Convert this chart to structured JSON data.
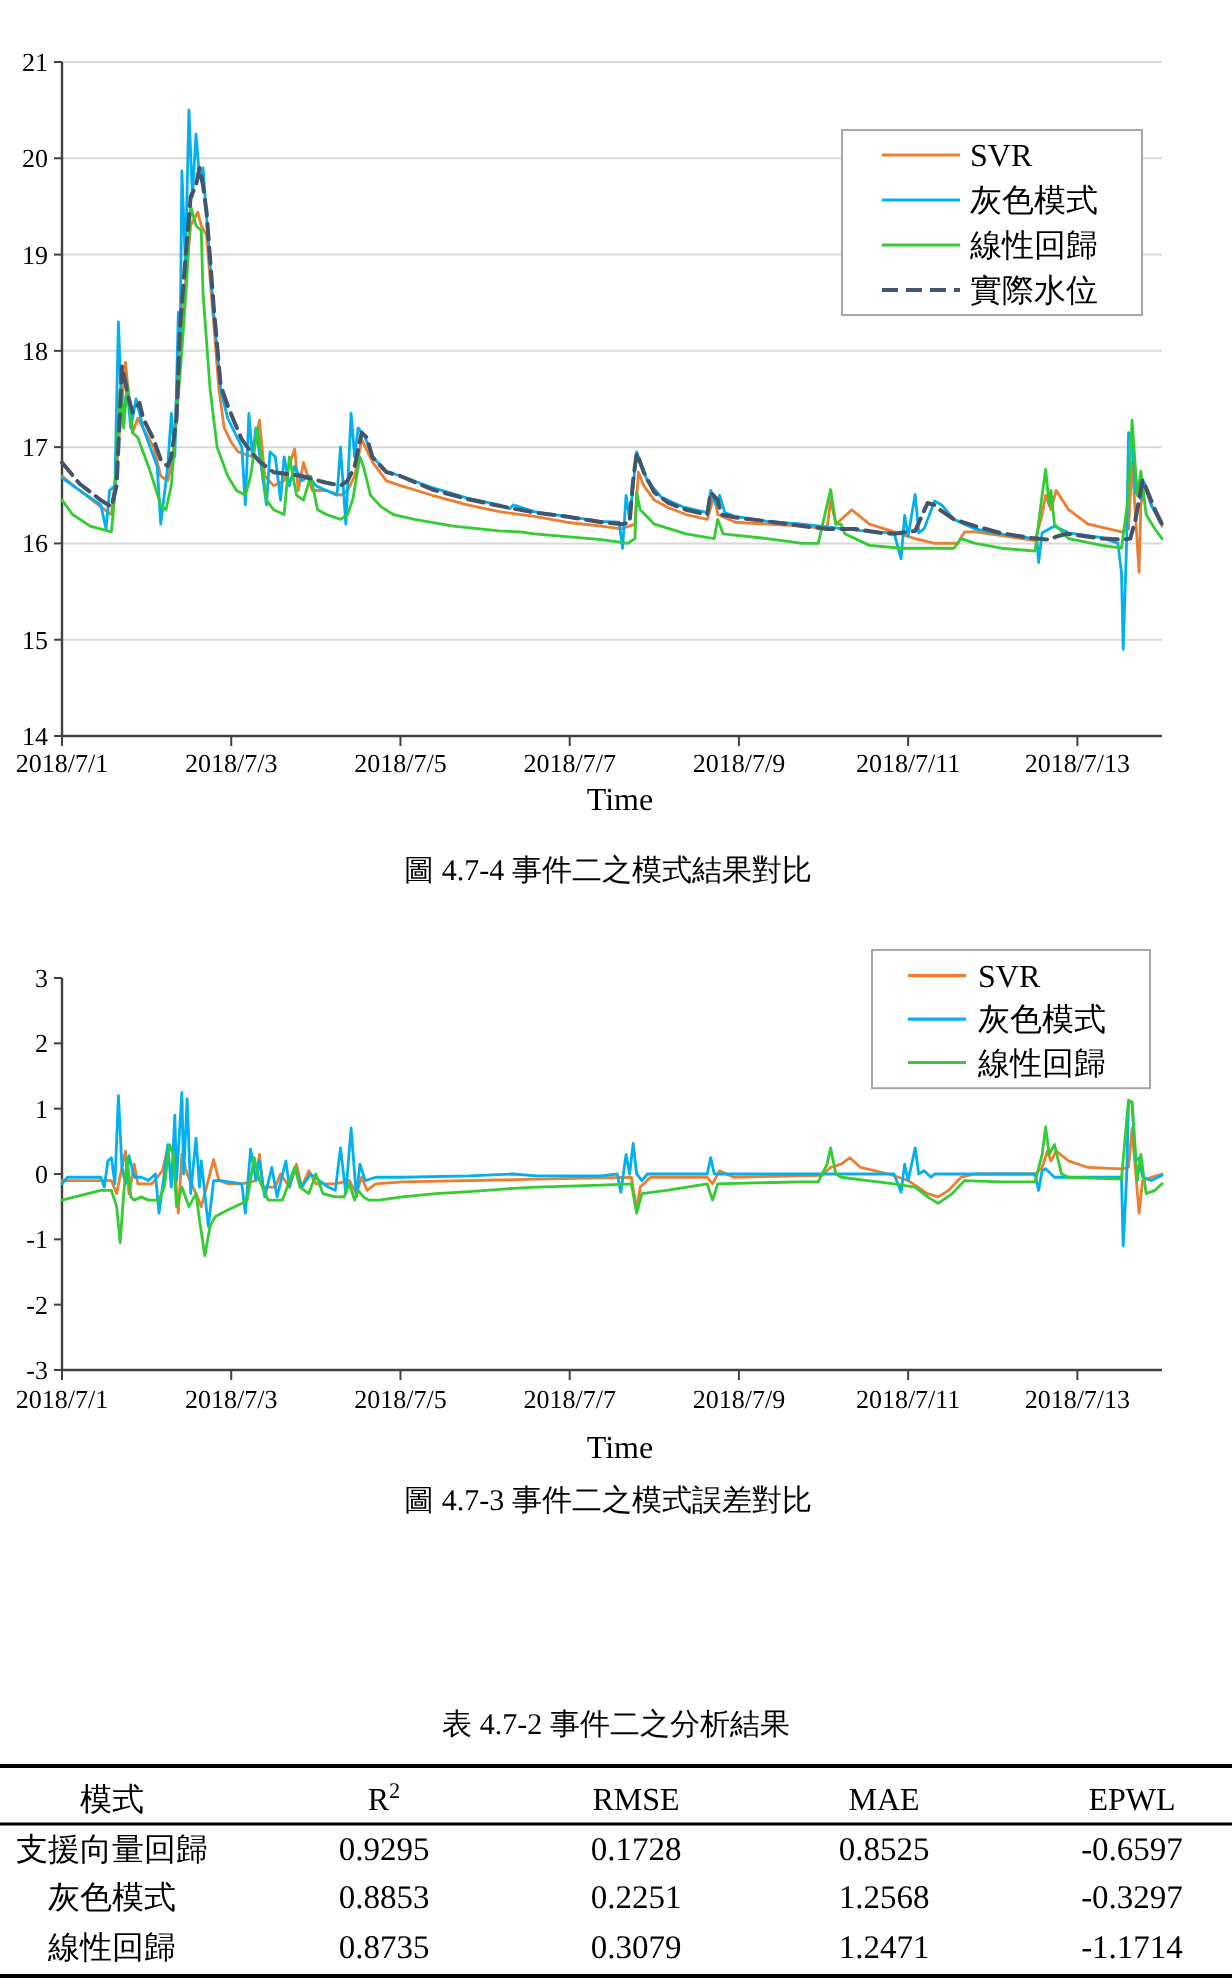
{
  "chart_data": [
    {
      "type": "line",
      "title": "圖 4.7-4 事件二之模式結果對比",
      "xlabel": "Time",
      "xlim": [
        "2018-07-01",
        "2018-07-14"
      ],
      "xticks": [
        {
          "value": "2018-07-01",
          "label": "2018/7/1"
        },
        {
          "value": "2018-07-03",
          "label": "2018/7/3"
        },
        {
          "value": "2018-07-05",
          "label": "2018/7/5"
        },
        {
          "value": "2018-07-07",
          "label": "2018/7/7"
        },
        {
          "value": "2018-07-09",
          "label": "2018/7/9"
        },
        {
          "value": "2018-07-11",
          "label": "2018/7/11"
        },
        {
          "value": "2018-07-13",
          "label": "2018/7/13"
        }
      ],
      "ylim": [
        14,
        21
      ],
      "yticks": [
        14,
        15,
        16,
        17,
        18,
        19,
        20,
        21
      ],
      "grid": "y",
      "legend": "top right",
      "series": [
        {
          "name": "SVR",
          "color": "#ed7d31",
          "x": [
            "2018-07-01T00:00",
            "2018-07-01T05:00",
            "2018-07-01T11:00",
            "2018-07-01T14:00",
            "2018-07-01T15:30",
            "2018-07-01T18:00",
            "2018-07-01T19:00",
            "2018-07-01T20:00",
            "2018-07-01T21:30",
            "2018-07-01T23:00",
            "2018-07-02T02:00",
            "2018-07-02T04:00",
            "2018-07-02T06:00",
            "2018-07-02T07:30",
            "2018-07-02T09:00",
            "2018-07-02T11:00",
            "2018-07-02T12:30",
            "2018-07-02T14:30",
            "2018-07-02T15:30",
            "2018-07-02T17:00",
            "2018-07-02T19:00",
            "2018-07-02T20:30",
            "2018-07-02T22:00",
            "2018-07-03T00:00",
            "2018-07-03T02:00",
            "2018-07-03T06:00",
            "2018-07-03T08:00",
            "2018-07-03T09:30",
            "2018-07-03T12:00",
            "2018-07-03T15:00",
            "2018-07-03T18:00",
            "2018-07-03T19:00",
            "2018-07-03T20:30",
            "2018-07-03T23:00",
            "2018-07-04T03:00",
            "2018-07-04T07:00",
            "2018-07-04T09:00",
            "2018-07-04T11:00",
            "2018-07-04T13:00",
            "2018-07-04T16:00",
            "2018-07-04T20:00",
            "2018-07-05T00:00",
            "2018-07-05T09:00",
            "2018-07-05T19:00",
            "2018-07-06T04:00",
            "2018-07-06T14:00",
            "2018-07-06T23:00",
            "2018-07-07T09:00",
            "2018-07-07T14:30",
            "2018-07-07T18:30",
            "2018-07-07T19:30",
            "2018-07-07T21:00",
            "2018-07-08T00:00",
            "2018-07-08T04:00",
            "2018-07-08T09:00",
            "2018-07-08T15:00",
            "2018-07-08T17:00",
            "2018-07-08T18:00",
            "2018-07-08T23:00",
            "2018-07-09T08:00",
            "2018-07-09T18:00",
            "2018-07-10T01:00",
            "2018-07-10T02:00",
            "2018-07-10T03:30",
            "2018-07-10T08:00",
            "2018-07-10T13:00",
            "2018-07-10T20:00",
            "2018-07-11T02:00",
            "2018-07-11T07:30",
            "2018-07-11T14:00",
            "2018-07-11T16:00",
            "2018-07-11T19:00",
            "2018-07-12T02:30",
            "2018-07-12T12:00",
            "2018-07-12T14:00",
            "2018-07-12T15:00",
            "2018-07-12T16:30",
            "2018-07-12T18:00",
            "2018-07-12T21:30",
            "2018-07-13T03:00",
            "2018-07-13T12:30",
            "2018-07-13T14:30",
            "2018-07-13T15:30",
            "2018-07-13T17:30",
            "2018-07-13T18:00",
            "2018-07-13T19:00",
            "2018-07-13T21:00",
            "2018-07-14T00:00"
          ],
          "values": [
            16.7,
            16.55,
            16.38,
            16.3,
            16.8,
            17.88,
            17.5,
            17.15,
            17.3,
            17.2,
            17,
            16.7,
            16.65,
            16.9,
            17.8,
            18.7,
            19.3,
            19.44,
            19.3,
            19.2,
            18.3,
            17.6,
            17.2,
            17.05,
            16.95,
            16.9,
            17.28,
            16.7,
            16.6,
            16.65,
            16.98,
            16.55,
            16.84,
            16.55,
            16.55,
            16.5,
            16.55,
            16.7,
            17.08,
            16.85,
            16.65,
            16.6,
            16.5,
            16.4,
            16.33,
            16.28,
            16.22,
            16.18,
            16.15,
            16.2,
            16.74,
            16.6,
            16.45,
            16.37,
            16.3,
            16.25,
            16.5,
            16.3,
            16.22,
            16.2,
            16.18,
            16.15,
            16.45,
            16.2,
            16.35,
            16.2,
            16.12,
            16.05,
            16,
            16,
            16.12,
            16.12,
            16.08,
            16.03,
            16.3,
            16.5,
            16.35,
            16.55,
            16.35,
            16.2,
            16.12,
            16.15,
            16.85,
            15.7,
            16.4,
            16.6,
            16.4,
            16.18
          ]
        },
        {
          "name": "灰色模式",
          "color": "#00b0f0",
          "x": [
            "2018-07-01T00:00",
            "2018-07-01T05:00",
            "2018-07-01T11:00",
            "2018-07-01T12:30",
            "2018-07-01T13:30",
            "2018-07-01T15:00",
            "2018-07-01T16:00",
            "2018-07-01T17:00",
            "2018-07-01T18:30",
            "2018-07-01T19:30",
            "2018-07-01T21:00",
            "2018-07-01T23:00",
            "2018-07-02T01:00",
            "2018-07-02T03:00",
            "2018-07-02T04:00",
            "2018-07-02T06:00",
            "2018-07-02T07:00",
            "2018-07-02T08:00",
            "2018-07-02T09:00",
            "2018-07-02T09:30",
            "2018-07-02T10:00",
            "2018-07-02T11:00",
            "2018-07-02T12:00",
            "2018-07-02T13:00",
            "2018-07-02T14:00",
            "2018-07-02T15:00",
            "2018-07-02T16:00",
            "2018-07-02T17:00",
            "2018-07-02T19:00",
            "2018-07-02T21:00",
            "2018-07-02T23:00",
            "2018-07-03T01:00",
            "2018-07-03T03:00",
            "2018-07-03T04:00",
            "2018-07-03T05:00",
            "2018-07-03T06:00",
            "2018-07-03T07:00",
            "2018-07-03T08:30",
            "2018-07-03T10:00",
            "2018-07-03T11:00",
            "2018-07-03T12:30",
            "2018-07-03T14:00",
            "2018-07-03T15:00",
            "2018-07-03T16:30",
            "2018-07-03T18:00",
            "2018-07-03T20:00",
            "2018-07-03T22:00",
            "2018-07-04T00:00",
            "2018-07-04T03:00",
            "2018-07-04T06:00",
            "2018-07-04T07:00",
            "2018-07-04T08:30",
            "2018-07-04T10:00",
            "2018-07-04T11:00",
            "2018-07-04T12:00",
            "2018-07-04T14:00",
            "2018-07-04T16:00",
            "2018-07-04T20:00",
            "2018-07-05T00:00",
            "2018-07-05T09:00",
            "2018-07-05T19:00",
            "2018-07-06T04:00",
            "2018-07-06T07:00",
            "2018-07-06T08:00",
            "2018-07-06T14:00",
            "2018-07-06T23:00",
            "2018-07-07T09:00",
            "2018-07-07T14:00",
            "2018-07-07T15:00",
            "2018-07-07T16:00",
            "2018-07-07T17:00",
            "2018-07-07T19:00",
            "2018-07-07T20:00",
            "2018-07-07T22:00",
            "2018-07-08T02:00",
            "2018-07-08T08:00",
            "2018-07-08T15:00",
            "2018-07-08T16:00",
            "2018-07-08T17:30",
            "2018-07-08T18:30",
            "2018-07-08T20:00",
            "2018-07-08T23:00",
            "2018-07-09T08:00",
            "2018-07-09T18:00",
            "2018-07-10T04:00",
            "2018-07-10T14:00",
            "2018-07-10T20:00",
            "2018-07-10T22:00",
            "2018-07-10T23:00",
            "2018-07-11T00:00",
            "2018-07-11T02:00",
            "2018-07-11T03:00",
            "2018-07-11T04:30",
            "2018-07-11T07:30",
            "2018-07-11T09:30",
            "2018-07-11T13:00",
            "2018-07-11T19:00",
            "2018-07-12T02:00",
            "2018-07-12T10:00",
            "2018-07-12T12:30",
            "2018-07-12T13:00",
            "2018-07-12T14:00",
            "2018-07-12T16:00",
            "2018-07-12T17:30",
            "2018-07-12T21:30",
            "2018-07-13T07:00",
            "2018-07-13T11:30",
            "2018-07-13T12:30",
            "2018-07-13T13:00",
            "2018-07-13T14:00",
            "2018-07-13T14:30",
            "2018-07-13T15:30",
            "2018-07-13T16:30",
            "2018-07-13T18:00",
            "2018-07-13T19:00",
            "2018-07-13T21:00",
            "2018-07-14T00:00"
          ],
          "values": [
            16.68,
            16.55,
            16.4,
            16.15,
            16.55,
            16.6,
            18.3,
            17.3,
            17.6,
            17.2,
            17.5,
            17.2,
            17,
            16.8,
            16.2,
            16.8,
            17.35,
            16.9,
            18.4,
            18,
            19.87,
            18.9,
            20.5,
            19.6,
            20.25,
            19.8,
            19.9,
            19.4,
            18.4,
            17.6,
            17.3,
            17.15,
            17,
            16.4,
            17.35,
            16.9,
            17.2,
            16.8,
            16.4,
            16.95,
            16.9,
            16.45,
            16.9,
            16.6,
            16.8,
            16.65,
            16.7,
            16.6,
            16.55,
            16.5,
            17,
            16.2,
            17.35,
            16.9,
            17.2,
            17.1,
            16.9,
            16.75,
            16.7,
            16.58,
            16.47,
            16.4,
            16.36,
            16.4,
            16.33,
            16.28,
            16.23,
            16.22,
            15.95,
            16.5,
            16.25,
            16.95,
            16.85,
            16.65,
            16.48,
            16.38,
            16.32,
            16.55,
            16.4,
            16.5,
            16.32,
            16.28,
            16.23,
            16.2,
            16.16,
            16.12,
            16.11,
            15.84,
            16.29,
            16.08,
            16.51,
            16.11,
            16.15,
            16.44,
            16.4,
            16.25,
            16.15,
            16.1,
            16.06,
            16.05,
            15.8,
            16.11,
            16.15,
            16.18,
            16.11,
            16.06,
            16,
            15.7,
            14.9,
            16.04,
            17.15,
            17.08,
            16.53,
            16.46,
            16.63,
            16.39,
            16.2
          ]
        },
        {
          "name": "線性回歸",
          "color": "#33cc33",
          "x": [
            "2018-07-01T00:00",
            "2018-07-01T03:00",
            "2018-07-01T08:00",
            "2018-07-01T14:00",
            "2018-07-01T15:00",
            "2018-07-01T16:30",
            "2018-07-01T17:30",
            "2018-07-01T18:30",
            "2018-07-01T20:00",
            "2018-07-01T21:30",
            "2018-07-01T23:00",
            "2018-07-02T01:00",
            "2018-07-02T04:00",
            "2018-07-02T05:30",
            "2018-07-02T07:00",
            "2018-07-02T08:30",
            "2018-07-02T10:00",
            "2018-07-02T11:30",
            "2018-07-02T12:30",
            "2018-07-02T14:00",
            "2018-07-02T15:30",
            "2018-07-02T16:00",
            "2018-07-02T18:00",
            "2018-07-02T20:00",
            "2018-07-02T23:00",
            "2018-07-03T01:30",
            "2018-07-03T04:00",
            "2018-07-03T05:30",
            "2018-07-03T07:30",
            "2018-07-03T10:00",
            "2018-07-03T12:00",
            "2018-07-03T15:00",
            "2018-07-03T16:30",
            "2018-07-03T18:30",
            "2018-07-03T20:30",
            "2018-07-03T22:30",
            "2018-07-04T00:30",
            "2018-07-04T03:00",
            "2018-07-04T07:00",
            "2018-07-04T09:00",
            "2018-07-04T10:30",
            "2018-07-04T12:30",
            "2018-07-04T13:30",
            "2018-07-04T15:30",
            "2018-07-04T18:30",
            "2018-07-04T22:00",
            "2018-07-05T04:00",
            "2018-07-05T15:00",
            "2018-07-06T04:00",
            "2018-07-06T10:00",
            "2018-07-06T14:00",
            "2018-07-06T23:00",
            "2018-07-07T09:00",
            "2018-07-07T16:30",
            "2018-07-07T18:30",
            "2018-07-07T19:00",
            "2018-07-07T20:00",
            "2018-07-08T00:00",
            "2018-07-08T09:00",
            "2018-07-08T17:00",
            "2018-07-08T18:00",
            "2018-07-08T19:30",
            "2018-07-09T08:00",
            "2018-07-09T18:00",
            "2018-07-09T22:30",
            "2018-07-10T01:00",
            "2018-07-10T02:00",
            "2018-07-10T03:30",
            "2018-07-10T05:00",
            "2018-07-10T06:00",
            "2018-07-10T13:00",
            "2018-07-10T22:00",
            "2018-07-11T13:00",
            "2018-07-11T15:00",
            "2018-07-11T19:00",
            "2018-07-12T02:30",
            "2018-07-12T12:00",
            "2018-07-12T14:00",
            "2018-07-12T15:00",
            "2018-07-12T16:00",
            "2018-07-12T16:30",
            "2018-07-12T17:30",
            "2018-07-12T21:30",
            "2018-07-13T07:00",
            "2018-07-13T12:30",
            "2018-07-13T14:30",
            "2018-07-13T15:30",
            "2018-07-13T17:00",
            "2018-07-13T18:00",
            "2018-07-13T19:30",
            "2018-07-13T22:00",
            "2018-07-14T00:00"
          ],
          "values": [
            16.45,
            16.3,
            16.18,
            16.12,
            16.5,
            17.6,
            17.2,
            17.65,
            17.15,
            17.1,
            16.95,
            16.75,
            16.4,
            16.35,
            16.6,
            17.3,
            18,
            18.8,
            19.5,
            19.3,
            19.25,
            18.6,
            17.6,
            17,
            16.7,
            16.55,
            16.5,
            16.7,
            17.2,
            16.45,
            16.35,
            16.3,
            16.9,
            16.5,
            16.45,
            16.7,
            16.35,
            16.3,
            16.25,
            16.3,
            16.46,
            16.9,
            16.8,
            16.5,
            16.38,
            16.3,
            16.25,
            16.18,
            16.13,
            16.12,
            16.1,
            16.07,
            16.04,
            16,
            16.05,
            16.53,
            16.35,
            16.2,
            16.1,
            16.05,
            16.25,
            16.1,
            16.05,
            16,
            16,
            16.4,
            16.56,
            16.2,
            16.2,
            16.1,
            15.98,
            15.95,
            15.95,
            16.05,
            16,
            15.95,
            15.92,
            16.5,
            16.77,
            16.4,
            16.55,
            16.2,
            16.05,
            15.98,
            15.95,
            16.5,
            17.28,
            16.5,
            16.75,
            16.3,
            16.15,
            16.05
          ]
        },
        {
          "name": "實際水位",
          "color": "#44546a",
          "line_style": "dashed",
          "x": [
            "2018-07-01T00:00",
            "2018-07-01T05:00",
            "2018-07-01T11:00",
            "2018-07-01T14:00",
            "2018-07-01T15:30",
            "2018-07-01T17:00",
            "2018-07-01T19:00",
            "2018-07-01T20:00",
            "2018-07-01T22:00",
            "2018-07-01T23:00",
            "2018-07-02T02:00",
            "2018-07-02T04:00",
            "2018-07-02T06:00",
            "2018-07-02T07:00",
            "2018-07-02T08:30",
            "2018-07-02T09:30",
            "2018-07-02T11:00",
            "2018-07-02T12:30",
            "2018-07-02T14:00",
            "2018-07-02T15:00",
            "2018-07-02T16:00",
            "2018-07-02T17:00",
            "2018-07-02T19:00",
            "2018-07-02T21:00",
            "2018-07-02T23:00",
            "2018-07-03T01:00",
            "2018-07-03T03:00",
            "2018-07-03T05:00",
            "2018-07-03T08:00",
            "2018-07-03T12:00",
            "2018-07-03T16:00",
            "2018-07-03T20:00",
            "2018-07-03T23:00",
            "2018-07-04T03:00",
            "2018-07-04T07:00",
            "2018-07-04T09:00",
            "2018-07-04T11:00",
            "2018-07-04T13:00",
            "2018-07-04T14:30",
            "2018-07-04T16:00",
            "2018-07-04T20:00",
            "2018-07-05T00:00",
            "2018-07-05T09:00",
            "2018-07-05T19:00",
            "2018-07-06T04:00",
            "2018-07-06T14:00",
            "2018-07-06T23:00",
            "2018-07-07T09:00",
            "2018-07-07T15:00",
            "2018-07-07T17:00",
            "2018-07-07T18:00",
            "2018-07-07T19:00",
            "2018-07-07T21:00",
            "2018-07-08T00:00",
            "2018-07-08T04:00",
            "2018-07-08T09:00",
            "2018-07-08T15:00",
            "2018-07-08T16:00",
            "2018-07-08T18:00",
            "2018-07-08T19:00",
            "2018-07-08T23:00",
            "2018-07-09T08:00",
            "2018-07-09T18:00",
            "2018-07-10T01:00",
            "2018-07-10T09:00",
            "2018-07-10T16:00",
            "2018-07-10T20:00",
            "2018-07-11T02:00",
            "2018-07-11T05:30",
            "2018-07-11T07:30",
            "2018-07-11T09:00",
            "2018-07-11T13:00",
            "2018-07-11T19:00",
            "2018-07-12T02:00",
            "2018-07-12T10:00",
            "2018-07-12T16:00",
            "2018-07-12T18:00",
            "2018-07-12T21:00",
            "2018-07-13T07:00",
            "2018-07-13T13:00",
            "2018-07-13T15:00",
            "2018-07-13T16:30",
            "2018-07-13T18:30",
            "2018-07-13T20:00",
            "2018-07-13T22:00",
            "2018-07-14T00:00"
          ],
          "values": [
            16.84,
            16.62,
            16.45,
            16.38,
            16.6,
            17.84,
            17.5,
            17.36,
            17.46,
            17.3,
            17.08,
            16.87,
            16.8,
            16.9,
            17.3,
            18.26,
            18.95,
            19.6,
            19.72,
            19.9,
            19.72,
            19.44,
            18.47,
            17.64,
            17.43,
            17.25,
            17.08,
            16.98,
            16.85,
            16.74,
            16.72,
            16.7,
            16.67,
            16.63,
            16.6,
            16.65,
            16.8,
            17.15,
            17.1,
            16.9,
            16.74,
            16.7,
            16.56,
            16.46,
            16.39,
            16.32,
            16.28,
            16.22,
            16.2,
            16.22,
            16.66,
            16.94,
            16.74,
            16.53,
            16.42,
            16.35,
            16.3,
            16.53,
            16.45,
            16.3,
            16.27,
            16.23,
            16.18,
            16.15,
            16.15,
            16.11,
            16.1,
            16.13,
            16.42,
            16.4,
            16.35,
            16.25,
            16.18,
            16.11,
            16.06,
            16.04,
            16.07,
            16.1,
            16.05,
            16.04,
            16.05,
            16.25,
            16.66,
            16.53,
            16.35,
            16.2
          ]
        }
      ]
    },
    {
      "type": "line",
      "title": "圖 4.7-3 事件二之模式誤差對比",
      "xlabel": "Time",
      "xlim": [
        "2018-07-01",
        "2018-07-14"
      ],
      "xticks": [
        {
          "value": "2018-07-01",
          "label": "2018/7/1"
        },
        {
          "value": "2018-07-03",
          "label": "2018/7/3"
        },
        {
          "value": "2018-07-05",
          "label": "2018/7/5"
        },
        {
          "value": "2018-07-07",
          "label": "2018/7/7"
        },
        {
          "value": "2018-07-09",
          "label": "2018/7/9"
        },
        {
          "value": "2018-07-11",
          "label": "2018/7/11"
        },
        {
          "value": "2018-07-13",
          "label": "2018/7/13"
        }
      ],
      "ylim": [
        -3,
        3
      ],
      "yticks": [
        -3,
        -2,
        -1,
        0,
        1,
        2,
        3
      ],
      "legend": "top right",
      "series": [
        {
          "name": "SVR",
          "color": "#ed7d31",
          "x": [
            "2018-07-01T00:00",
            "2018-07-01T11:00",
            "2018-07-01T14:00",
            "2018-07-01T15:30",
            "2018-07-01T17:00",
            "2018-07-01T18:00",
            "2018-07-01T19:00",
            "2018-07-01T20:30",
            "2018-07-01T21:30",
            "2018-07-02T01:30",
            "2018-07-02T04:30",
            "2018-07-02T06:00",
            "2018-07-02T07:30",
            "2018-07-02T09:00",
            "2018-07-02T10:00",
            "2018-07-02T11:30",
            "2018-07-02T14:00",
            "2018-07-02T15:30",
            "2018-07-02T16:30",
            "2018-07-02T19:00",
            "2018-07-02T20:30",
            "2018-07-02T23:00",
            "2018-07-03T03:00",
            "2018-07-03T07:00",
            "2018-07-03T08:00",
            "2018-07-03T09:00",
            "2018-07-03T12:30",
            "2018-07-03T14:00",
            "2018-07-03T16:30",
            "2018-07-03T18:30",
            "2018-07-03T20:00",
            "2018-07-03T22:00",
            "2018-07-04T00:00",
            "2018-07-04T05:30",
            "2018-07-04T09:30",
            "2018-07-04T11:30",
            "2018-07-04T13:00",
            "2018-07-04T14:30",
            "2018-07-04T17:00",
            "2018-07-05T00:30",
            "2018-07-05T19:30",
            "2018-07-06T14:30",
            "2018-07-07T09:00",
            "2018-07-07T17:30",
            "2018-07-07T19:00",
            "2018-07-07T20:00",
            "2018-07-07T23:00",
            "2018-07-08T15:00",
            "2018-07-08T16:30",
            "2018-07-08T18:30",
            "2018-07-08T22:30",
            "2018-07-09T23:30",
            "2018-07-10T02:00",
            "2018-07-10T05:00",
            "2018-07-10T07:30",
            "2018-07-10T10:30",
            "2018-07-10T18:30",
            "2018-07-11T00:00",
            "2018-07-11T05:30",
            "2018-07-11T08:30",
            "2018-07-11T11:30",
            "2018-07-11T15:00",
            "2018-07-11T19:00",
            "2018-07-12T12:00",
            "2018-07-12T14:00",
            "2018-07-12T15:30",
            "2018-07-12T16:30",
            "2018-07-12T18:00",
            "2018-07-12T21:30",
            "2018-07-13T03:00",
            "2018-07-13T12:30",
            "2018-07-13T14:30",
            "2018-07-13T15:30",
            "2018-07-13T17:30",
            "2018-07-13T18:30",
            "2018-07-13T21:00",
            "2018-07-14T00:00"
          ],
          "values": [
            -0.1,
            -0.1,
            -0.1,
            -0.3,
            0.1,
            0.35,
            -0.3,
            0.15,
            -0.15,
            -0.15,
            0.05,
            0.4,
            0.4,
            -0.6,
            0.3,
            0,
            -0.3,
            -0.5,
            -0.3,
            0.22,
            -0.1,
            -0.15,
            -0.15,
            -0.1,
            0.3,
            -0.2,
            -0.2,
            0,
            -0.2,
            0.15,
            -0.2,
            0.05,
            -0.15,
            -0.15,
            -0.1,
            -0.3,
            -0.05,
            -0.25,
            -0.15,
            -0.12,
            -0.1,
            -0.08,
            -0.06,
            -0.05,
            -0.55,
            -0.2,
            -0.05,
            -0.05,
            -0.15,
            0.05,
            -0.05,
            -0.02,
            0.1,
            0.15,
            0.25,
            0.1,
            0,
            -0.1,
            -0.3,
            -0.35,
            -0.25,
            -0.05,
            0,
            0,
            0.1,
            0.35,
            0.2,
            0.35,
            0.2,
            0.1,
            0.08,
            0.1,
            0.7,
            -0.6,
            -0.1,
            -0.05,
            0
          ]
        },
        {
          "name": "灰色模式",
          "color": "#00b0f0",
          "x": [
            "2018-07-01T00:00",
            "2018-07-01T01:30",
            "2018-07-01T11:00",
            "2018-07-01T12:00",
            "2018-07-01T13:00",
            "2018-07-01T14:00",
            "2018-07-01T15:00",
            "2018-07-01T16:00",
            "2018-07-01T17:00",
            "2018-07-01T18:00",
            "2018-07-01T19:00",
            "2018-07-01T20:30",
            "2018-07-01T22:30",
            "2018-07-02T00:30",
            "2018-07-02T02:30",
            "2018-07-02T03:30",
            "2018-07-02T05:00",
            "2018-07-02T06:00",
            "2018-07-02T07:00",
            "2018-07-02T08:00",
            "2018-07-02T08:30",
            "2018-07-02T10:00",
            "2018-07-02T10:30",
            "2018-07-02T11:30",
            "2018-07-02T12:30",
            "2018-07-02T14:00",
            "2018-07-02T15:00",
            "2018-07-02T15:30",
            "2018-07-02T16:30",
            "2018-07-02T17:30",
            "2018-07-02T19:00",
            "2018-07-02T21:00",
            "2018-07-03T03:00",
            "2018-07-03T04:00",
            "2018-07-03T05:30",
            "2018-07-03T07:00",
            "2018-07-03T08:00",
            "2018-07-03T09:30",
            "2018-07-03T11:30",
            "2018-07-03T13:00",
            "2018-07-03T15:30",
            "2018-07-03T16:30",
            "2018-07-03T18:00",
            "2018-07-03T20:00",
            "2018-07-03T22:30",
            "2018-07-04T01:00",
            "2018-07-04T03:30",
            "2018-07-04T05:30",
            "2018-07-04T07:00",
            "2018-07-04T08:30",
            "2018-07-04T10:00",
            "2018-07-04T11:30",
            "2018-07-04T12:30",
            "2018-07-04T14:00",
            "2018-07-04T17:00",
            "2018-07-05T00:30",
            "2018-07-05T19:30",
            "2018-07-06T08:00",
            "2018-07-06T14:30",
            "2018-07-07T09:00",
            "2018-07-07T13:30",
            "2018-07-07T14:30",
            "2018-07-07T16:00",
            "2018-07-07T17:00",
            "2018-07-07T18:00",
            "2018-07-07T19:00",
            "2018-07-07T20:30",
            "2018-07-07T22:00",
            "2018-07-08T15:00",
            "2018-07-08T16:00",
            "2018-07-08T17:00",
            "2018-07-10T20:00",
            "2018-07-10T22:00",
            "2018-07-10T23:00",
            "2018-07-11T00:00",
            "2018-07-11T02:00",
            "2018-07-11T03:00",
            "2018-07-11T04:30",
            "2018-07-11T06:30",
            "2018-07-11T07:30",
            "2018-07-12T12:00",
            "2018-07-12T13:00",
            "2018-07-12T14:00",
            "2018-07-12T15:00",
            "2018-07-12T17:30",
            "2018-07-13T12:30",
            "2018-07-13T13:00",
            "2018-07-13T14:00",
            "2018-07-13T14:30",
            "2018-07-13T15:30",
            "2018-07-13T16:30",
            "2018-07-13T17:30",
            "2018-07-13T18:30",
            "2018-07-13T21:00",
            "2018-07-14T00:00"
          ],
          "values": [
            -0.15,
            -0.05,
            -0.05,
            -0.2,
            0.2,
            0.25,
            -0.15,
            1.2,
            0.1,
            -0.15,
            0.28,
            -0.05,
            -0.05,
            -0.1,
            0,
            -0.6,
            0,
            0.45,
            -0.2,
            0.9,
            -0.1,
            1.25,
            0,
            1.15,
            -0.3,
            0.55,
            -0.2,
            0.2,
            -0.3,
            -0.8,
            -0.1,
            -0.1,
            -0.15,
            -0.6,
            0.38,
            -0.1,
            0.2,
            -0.35,
            0.1,
            -0.35,
            0.2,
            -0.2,
            0.1,
            -0.2,
            0,
            -0.1,
            -0.2,
            -0.25,
            0.4,
            -0.3,
            0.7,
            -0.35,
            0.15,
            -0.1,
            -0.05,
            -0.05,
            -0.03,
            0,
            -0.03,
            -0.03,
            0,
            -0.28,
            0.3,
            0,
            0.47,
            0,
            -0.1,
            0,
            0,
            0.25,
            0,
            0,
            -0.28,
            0.15,
            -0.1,
            0.4,
            0,
            0.05,
            -0.05,
            0,
            0,
            -0.25,
            0.05,
            0.08,
            -0.05,
            -0.05,
            -1.1,
            0,
            1.1,
            1.1,
            0.2,
            0.25,
            -0.05,
            -0.1,
            -0.02
          ]
        },
        {
          "name": "線性回歸",
          "color": "#33cc33",
          "x": [
            "2018-07-01T00:00",
            "2018-07-01T11:00",
            "2018-07-01T14:00",
            "2018-07-01T15:30",
            "2018-07-01T16:30",
            "2018-07-01T17:30",
            "2018-07-01T18:30",
            "2018-07-01T19:30",
            "2018-07-01T20:30",
            "2018-07-01T22:30",
            "2018-07-02T00:30",
            "2018-07-02T03:30",
            "2018-07-02T05:00",
            "2018-07-02T06:30",
            "2018-07-02T07:30",
            "2018-07-02T08:30",
            "2018-07-02T10:00",
            "2018-07-02T12:00",
            "2018-07-02T14:00",
            "2018-07-02T15:00",
            "2018-07-02T16:30",
            "2018-07-02T18:00",
            "2018-07-02T19:30",
            "2018-07-02T23:00",
            "2018-07-03T03:00",
            "2018-07-03T04:30",
            "2018-07-03T06:30",
            "2018-07-03T08:00",
            "2018-07-03T10:30",
            "2018-07-03T14:30",
            "2018-07-03T18:00",
            "2018-07-03T19:30",
            "2018-07-03T22:00",
            "2018-07-04T00:00",
            "2018-07-04T02:00",
            "2018-07-04T05:30",
            "2018-07-04T08:00",
            "2018-07-04T09:30",
            "2018-07-04T11:00",
            "2018-07-04T12:00",
            "2018-07-04T13:30",
            "2018-07-04T15:00",
            "2018-07-04T18:00",
            "2018-07-05T00:30",
            "2018-07-05T10:00",
            "2018-07-05T19:30",
            "2018-07-06T08:00",
            "2018-07-06T14:30",
            "2018-07-07T09:00",
            "2018-07-07T17:30",
            "2018-07-07T19:00",
            "2018-07-07T20:30",
            "2018-07-08T03:30",
            "2018-07-08T15:00",
            "2018-07-08T16:30",
            "2018-07-08T18:00",
            "2018-07-09T17:30",
            "2018-07-09T22:30",
            "2018-07-10T01:00",
            "2018-07-10T02:00",
            "2018-07-10T03:30",
            "2018-07-10T05:00",
            "2018-07-10T12:30",
            "2018-07-10T20:00",
            "2018-07-11T02:00",
            "2018-07-11T05:30",
            "2018-07-11T08:30",
            "2018-07-11T12:30",
            "2018-07-11T16:00",
            "2018-07-12T02:30",
            "2018-07-12T12:00",
            "2018-07-12T14:00",
            "2018-07-12T15:00",
            "2018-07-12T16:00",
            "2018-07-12T17:30",
            "2018-07-12T19:30",
            "2018-07-12T21:30",
            "2018-07-13T12:30",
            "2018-07-13T14:30",
            "2018-07-13T15:30",
            "2018-07-13T17:00",
            "2018-07-13T18:00",
            "2018-07-13T19:30",
            "2018-07-13T22:00",
            "2018-07-14T00:00"
          ],
          "values": [
            -0.4,
            -0.25,
            -0.25,
            -0.5,
            -1.05,
            -0.3,
            0.25,
            -0.35,
            -0.4,
            -0.35,
            -0.4,
            -0.4,
            -0.2,
            0.45,
            0.3,
            -0.5,
            -0.2,
            -0.5,
            -0.3,
            -0.7,
            -1.25,
            -0.8,
            -0.65,
            -0.55,
            -0.45,
            -0.4,
            0.25,
            -0.1,
            -0.4,
            -0.4,
            0.1,
            -0.2,
            -0.3,
            0,
            -0.3,
            -0.35,
            -0.35,
            -0.15,
            -0.4,
            -0.25,
            -0.35,
            -0.4,
            -0.4,
            -0.35,
            -0.3,
            -0.27,
            -0.22,
            -0.2,
            -0.17,
            -0.15,
            -0.6,
            -0.3,
            -0.25,
            -0.15,
            -0.4,
            -0.15,
            -0.12,
            -0.12,
            0.15,
            0.4,
            0,
            -0.05,
            -0.1,
            -0.15,
            -0.2,
            -0.35,
            -0.45,
            -0.3,
            -0.1,
            -0.12,
            -0.12,
            0.3,
            0.72,
            0.3,
            0.45,
            0,
            -0.05,
            -0.08,
            1.13,
            1.1,
            -0.1,
            0.3,
            -0.3,
            -0.25,
            -0.15
          ]
        }
      ]
    },
    {
      "type": "heatmap",
      "title": "表 4.7-2 事件二之分析結果",
      "ylabel": "模式",
      "categories": [
        "R$^{2}$",
        "RMSE",
        "MAE",
        "EPWL"
      ],
      "y_categories": [
        "支援向量回歸",
        "灰色模式",
        "線性回歸"
      ],
      "cells": [
        [
          0.9295,
          0.1728,
          0.8525,
          -0.6597
        ],
        [
          0.8853,
          0.2251,
          1.2568,
          -0.3297
        ],
        [
          0.8735,
          0.3079,
          1.2471,
          -1.1714
        ]
      ],
      "data_labels": true
    }
  ]
}
